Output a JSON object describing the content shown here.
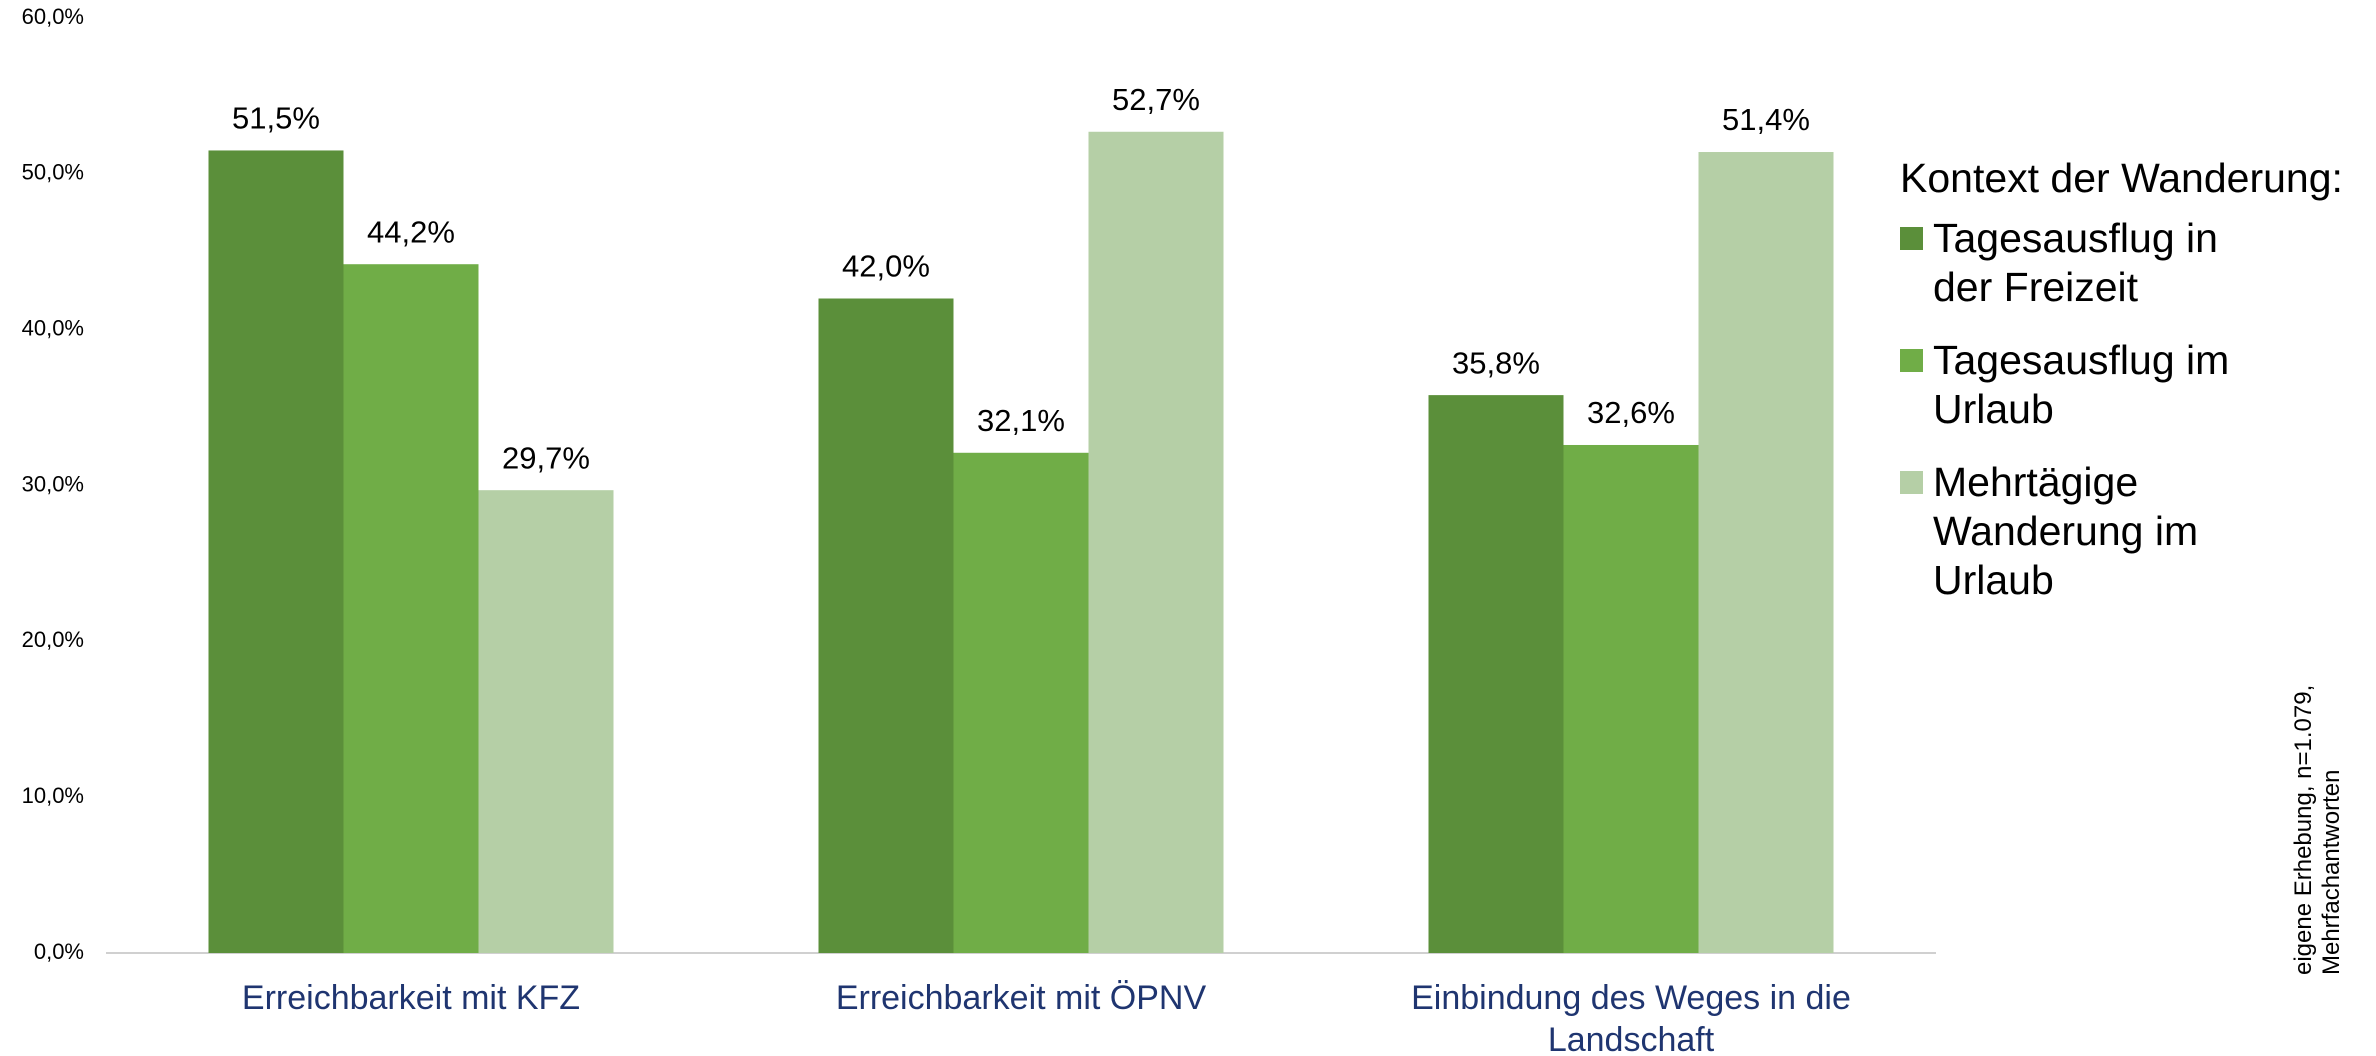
{
  "chart_data": {
    "type": "bar",
    "categories": [
      "Erreichbarkeit mit KFZ",
      "Erreichbarkeit mit ÖPNV",
      "Einbindung des Weges in die Landschaft"
    ],
    "series": [
      {
        "name": "Tagesausflug in der Freizeit",
        "color": "#5b8f3a",
        "values": [
          51.5,
          42.0,
          35.8
        ],
        "value_labels": [
          "51,5%",
          "42,0%",
          "35,8%"
        ]
      },
      {
        "name": "Tagesausflug im Urlaub",
        "color": "#70ad47",
        "values": [
          44.2,
          32.1,
          32.6
        ],
        "value_labels": [
          "44,2%",
          "32,1%",
          "32,6%"
        ]
      },
      {
        "name": "Mehrtägige Wanderung im Urlaub",
        "color": "#b5cfa6",
        "values": [
          29.7,
          52.7,
          51.4
        ],
        "value_labels": [
          "29,7%",
          "52,7%",
          "51,4%"
        ]
      }
    ],
    "legend_title": "Kontext der Wanderung:",
    "note": "eigene Erhebung, n=1.079, Mehrfachantworten",
    "ylim": [
      0,
      60
    ],
    "yticks": [
      {
        "value": 0,
        "label": "0,0%"
      },
      {
        "value": 10,
        "label": "10,0%"
      },
      {
        "value": 20,
        "label": "20,0%"
      },
      {
        "value": 30,
        "label": "30,0%"
      },
      {
        "value": 40,
        "label": "40,0%"
      },
      {
        "value": 50,
        "label": "50,0%"
      },
      {
        "value": 60,
        "label": "60,0%"
      }
    ],
    "grid": false,
    "legend": "right"
  }
}
